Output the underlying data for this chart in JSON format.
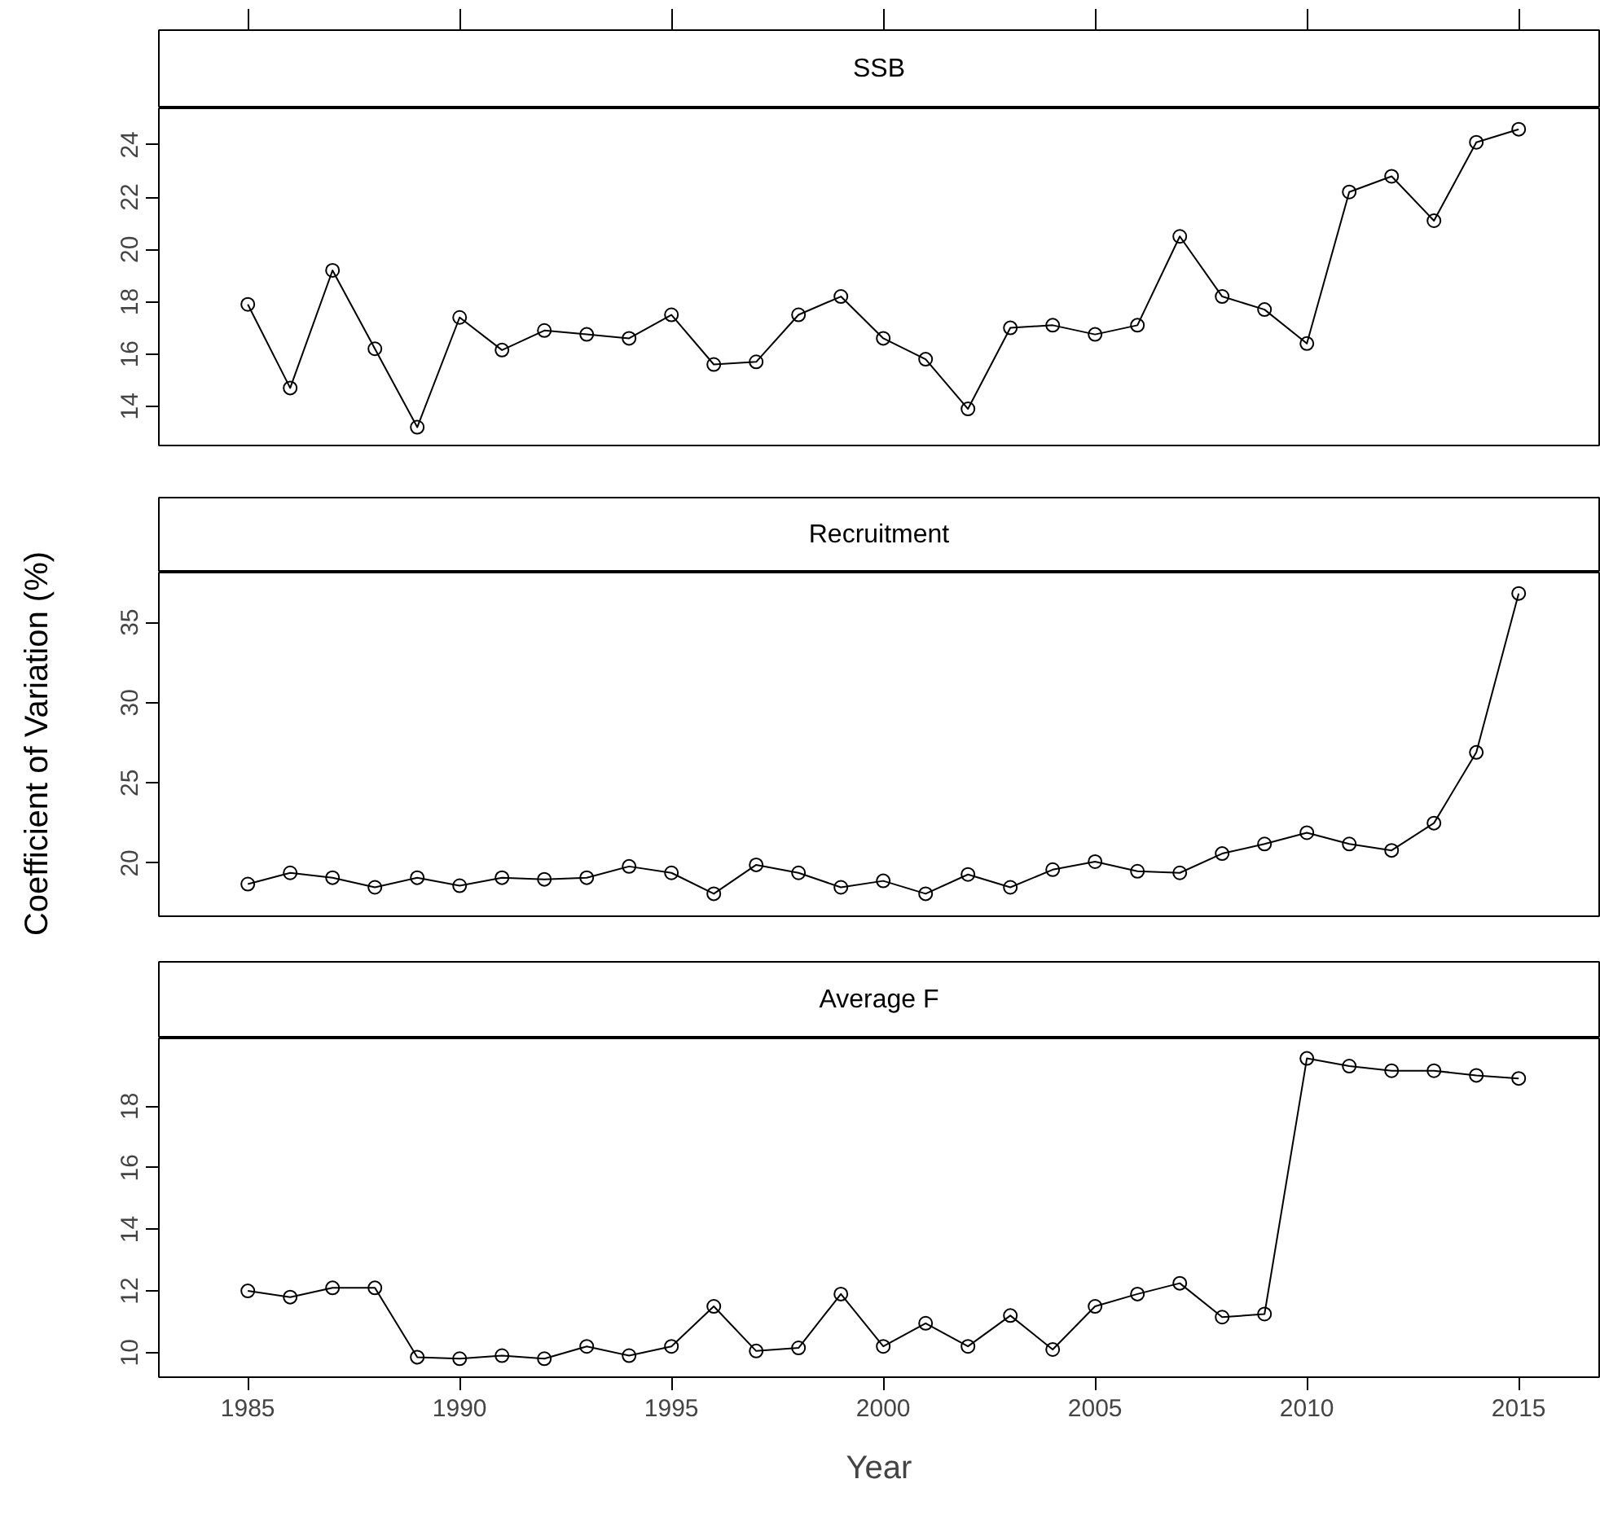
{
  "chart_data": [
    {
      "type": "line",
      "title": "SSB",
      "x": [
        1985,
        1986,
        1987,
        1988,
        1989,
        1990,
        1991,
        1992,
        1993,
        1994,
        1995,
        1996,
        1997,
        1998,
        1999,
        2000,
        2001,
        2002,
        2003,
        2004,
        2005,
        2006,
        2007,
        2008,
        2009,
        2010,
        2011,
        2012,
        2013,
        2014,
        2015
      ],
      "series": [
        {
          "color": "#000000",
          "values": [
            17.9,
            14.7,
            19.2,
            16.2,
            13.2,
            17.4,
            16.15,
            16.9,
            16.75,
            16.6,
            17.5,
            15.6,
            15.7,
            17.5,
            18.2,
            16.6,
            15.8,
            13.9,
            17.0,
            17.1,
            16.75,
            17.1,
            20.5,
            18.2,
            17.7,
            16.4,
            22.2,
            22.8,
            21.1,
            24.1,
            24.6
          ]
        }
      ],
      "xlim": [
        1982.9,
        2016.9
      ],
      "xticks": [
        1985,
        1990,
        1995,
        2000,
        2005,
        2010,
        2015
      ],
      "ylim": [
        12.5,
        25.4
      ],
      "yticks": [
        14,
        16,
        18,
        20,
        22,
        24
      ],
      "marker": "circle",
      "line_style": "solid",
      "tick_labels": "y"
    },
    {
      "type": "line",
      "title": "Recruitment",
      "ylabel": "Coefficient of Variation (%)",
      "x": [
        1985,
        1986,
        1987,
        1988,
        1989,
        1990,
        1991,
        1992,
        1993,
        1994,
        1995,
        1996,
        1997,
        1998,
        1999,
        2000,
        2001,
        2002,
        2003,
        2004,
        2005,
        2006,
        2007,
        2008,
        2009,
        2010,
        2011,
        2012,
        2013,
        2014,
        2015
      ],
      "series": [
        {
          "color": "#000000",
          "values": [
            18.7,
            19.4,
            19.1,
            18.5,
            19.1,
            18.6,
            19.1,
            19.0,
            19.1,
            19.8,
            19.4,
            18.1,
            19.9,
            19.4,
            18.5,
            18.9,
            18.1,
            19.3,
            18.5,
            19.6,
            20.1,
            19.5,
            19.4,
            20.6,
            21.2,
            21.9,
            21.2,
            20.8,
            22.5,
            26.9,
            36.8
          ]
        }
      ],
      "xlim": [
        1982.9,
        2016.9
      ],
      "xticks": [
        1985,
        1990,
        1995,
        2000,
        2005,
        2010,
        2015
      ],
      "ylim": [
        16.7,
        38.1
      ],
      "yticks": [
        20,
        25,
        30,
        35
      ],
      "marker": "circle",
      "line_style": "solid",
      "tick_labels": "y"
    },
    {
      "type": "line",
      "title": "Average F",
      "xlabel": "Year",
      "x": [
        1985,
        1986,
        1987,
        1988,
        1989,
        1990,
        1991,
        1992,
        1993,
        1994,
        1995,
        1996,
        1997,
        1998,
        1999,
        2000,
        2001,
        2002,
        2003,
        2004,
        2005,
        2006,
        2007,
        2008,
        2009,
        2010,
        2011,
        2012,
        2013,
        2014,
        2015
      ],
      "series": [
        {
          "color": "#000000",
          "values": [
            12.0,
            11.8,
            12.1,
            12.1,
            9.85,
            9.8,
            9.9,
            9.8,
            10.2,
            9.9,
            10.2,
            11.5,
            10.05,
            10.15,
            11.9,
            10.2,
            10.95,
            10.2,
            11.2,
            10.1,
            11.5,
            11.9,
            12.25,
            11.15,
            11.25,
            19.55,
            19.3,
            19.15,
            19.15,
            19.0,
            18.9
          ]
        }
      ],
      "xlim": [
        1982.9,
        2016.9
      ],
      "xticks": [
        1985,
        1990,
        1995,
        2000,
        2005,
        2010,
        2015
      ],
      "ylim": [
        9.2,
        20.2
      ],
      "yticks": [
        10,
        12,
        14,
        16,
        18
      ],
      "marker": "circle",
      "line_style": "solid"
    }
  ]
}
